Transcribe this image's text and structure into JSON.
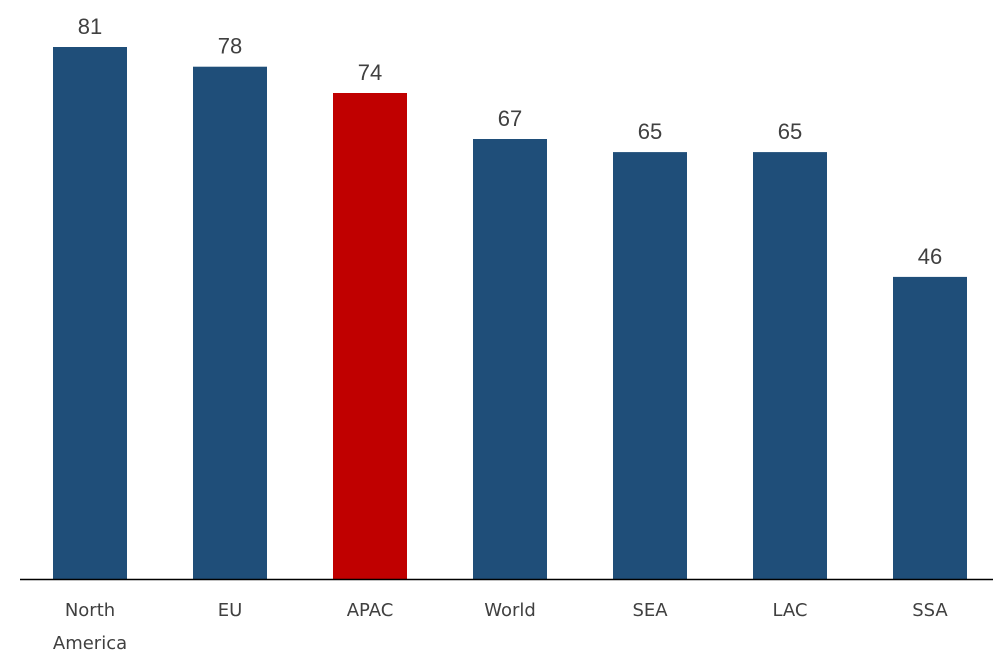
{
  "chart_data": {
    "type": "bar",
    "categories": [
      "North America",
      "EU",
      "APAC",
      "World",
      "SEA",
      "LAC",
      "SSA"
    ],
    "category_lines": [
      [
        "North",
        "America"
      ],
      [
        "EU"
      ],
      [
        "APAC"
      ],
      [
        "World"
      ],
      [
        "SEA"
      ],
      [
        "LAC"
      ],
      [
        "SSA"
      ]
    ],
    "values": [
      81,
      78,
      74,
      67,
      65,
      65,
      46
    ],
    "value_labels": [
      "81",
      "78",
      "74",
      "67",
      "65",
      "65",
      "46"
    ],
    "highlight_category": "APAC",
    "colors": {
      "default": "#1F4E79",
      "highlight": "#C00000",
      "axis": "#000000",
      "text": "#404040"
    },
    "title": "",
    "xlabel": "",
    "ylabel": "",
    "ylim": [
      0,
      81
    ],
    "grid": false,
    "legend": "none",
    "data_labels": true
  }
}
